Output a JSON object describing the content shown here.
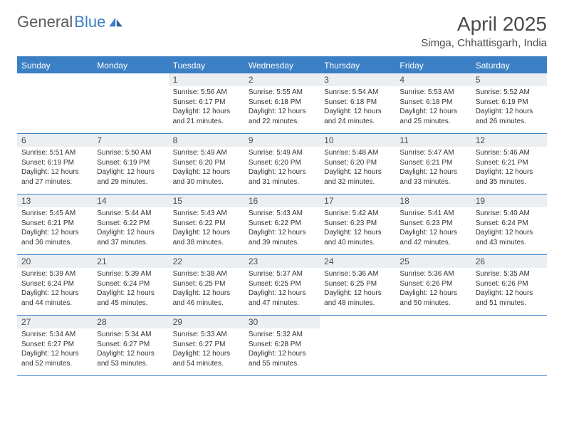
{
  "brand": {
    "name_part1": "General",
    "name_part2": "Blue"
  },
  "title": "April 2025",
  "location": "Simga, Chhattisgarh, India",
  "colors": {
    "primary": "#3b7fc4",
    "daynum_bg": "#eceff1",
    "text": "#333333",
    "header_text": "#4a4a4a",
    "white": "#ffffff"
  },
  "day_headers": [
    "Sunday",
    "Monday",
    "Tuesday",
    "Wednesday",
    "Thursday",
    "Friday",
    "Saturday"
  ],
  "weeks": [
    [
      null,
      null,
      {
        "n": "1",
        "sr": "5:56 AM",
        "ss": "6:17 PM",
        "dl": "12 hours and 21 minutes."
      },
      {
        "n": "2",
        "sr": "5:55 AM",
        "ss": "6:18 PM",
        "dl": "12 hours and 22 minutes."
      },
      {
        "n": "3",
        "sr": "5:54 AM",
        "ss": "6:18 PM",
        "dl": "12 hours and 24 minutes."
      },
      {
        "n": "4",
        "sr": "5:53 AM",
        "ss": "6:18 PM",
        "dl": "12 hours and 25 minutes."
      },
      {
        "n": "5",
        "sr": "5:52 AM",
        "ss": "6:19 PM",
        "dl": "12 hours and 26 minutes."
      }
    ],
    [
      {
        "n": "6",
        "sr": "5:51 AM",
        "ss": "6:19 PM",
        "dl": "12 hours and 27 minutes."
      },
      {
        "n": "7",
        "sr": "5:50 AM",
        "ss": "6:19 PM",
        "dl": "12 hours and 29 minutes."
      },
      {
        "n": "8",
        "sr": "5:49 AM",
        "ss": "6:20 PM",
        "dl": "12 hours and 30 minutes."
      },
      {
        "n": "9",
        "sr": "5:49 AM",
        "ss": "6:20 PM",
        "dl": "12 hours and 31 minutes."
      },
      {
        "n": "10",
        "sr": "5:48 AM",
        "ss": "6:20 PM",
        "dl": "12 hours and 32 minutes."
      },
      {
        "n": "11",
        "sr": "5:47 AM",
        "ss": "6:21 PM",
        "dl": "12 hours and 33 minutes."
      },
      {
        "n": "12",
        "sr": "5:46 AM",
        "ss": "6:21 PM",
        "dl": "12 hours and 35 minutes."
      }
    ],
    [
      {
        "n": "13",
        "sr": "5:45 AM",
        "ss": "6:21 PM",
        "dl": "12 hours and 36 minutes."
      },
      {
        "n": "14",
        "sr": "5:44 AM",
        "ss": "6:22 PM",
        "dl": "12 hours and 37 minutes."
      },
      {
        "n": "15",
        "sr": "5:43 AM",
        "ss": "6:22 PM",
        "dl": "12 hours and 38 minutes."
      },
      {
        "n": "16",
        "sr": "5:43 AM",
        "ss": "6:22 PM",
        "dl": "12 hours and 39 minutes."
      },
      {
        "n": "17",
        "sr": "5:42 AM",
        "ss": "6:23 PM",
        "dl": "12 hours and 40 minutes."
      },
      {
        "n": "18",
        "sr": "5:41 AM",
        "ss": "6:23 PM",
        "dl": "12 hours and 42 minutes."
      },
      {
        "n": "19",
        "sr": "5:40 AM",
        "ss": "6:24 PM",
        "dl": "12 hours and 43 minutes."
      }
    ],
    [
      {
        "n": "20",
        "sr": "5:39 AM",
        "ss": "6:24 PM",
        "dl": "12 hours and 44 minutes."
      },
      {
        "n": "21",
        "sr": "5:39 AM",
        "ss": "6:24 PM",
        "dl": "12 hours and 45 minutes."
      },
      {
        "n": "22",
        "sr": "5:38 AM",
        "ss": "6:25 PM",
        "dl": "12 hours and 46 minutes."
      },
      {
        "n": "23",
        "sr": "5:37 AM",
        "ss": "6:25 PM",
        "dl": "12 hours and 47 minutes."
      },
      {
        "n": "24",
        "sr": "5:36 AM",
        "ss": "6:25 PM",
        "dl": "12 hours and 48 minutes."
      },
      {
        "n": "25",
        "sr": "5:36 AM",
        "ss": "6:26 PM",
        "dl": "12 hours and 50 minutes."
      },
      {
        "n": "26",
        "sr": "5:35 AM",
        "ss": "6:26 PM",
        "dl": "12 hours and 51 minutes."
      }
    ],
    [
      {
        "n": "27",
        "sr": "5:34 AM",
        "ss": "6:27 PM",
        "dl": "12 hours and 52 minutes."
      },
      {
        "n": "28",
        "sr": "5:34 AM",
        "ss": "6:27 PM",
        "dl": "12 hours and 53 minutes."
      },
      {
        "n": "29",
        "sr": "5:33 AM",
        "ss": "6:27 PM",
        "dl": "12 hours and 54 minutes."
      },
      {
        "n": "30",
        "sr": "5:32 AM",
        "ss": "6:28 PM",
        "dl": "12 hours and 55 minutes."
      },
      null,
      null,
      null
    ]
  ],
  "labels": {
    "sunrise": "Sunrise:",
    "sunset": "Sunset:",
    "daylight": "Daylight:"
  }
}
